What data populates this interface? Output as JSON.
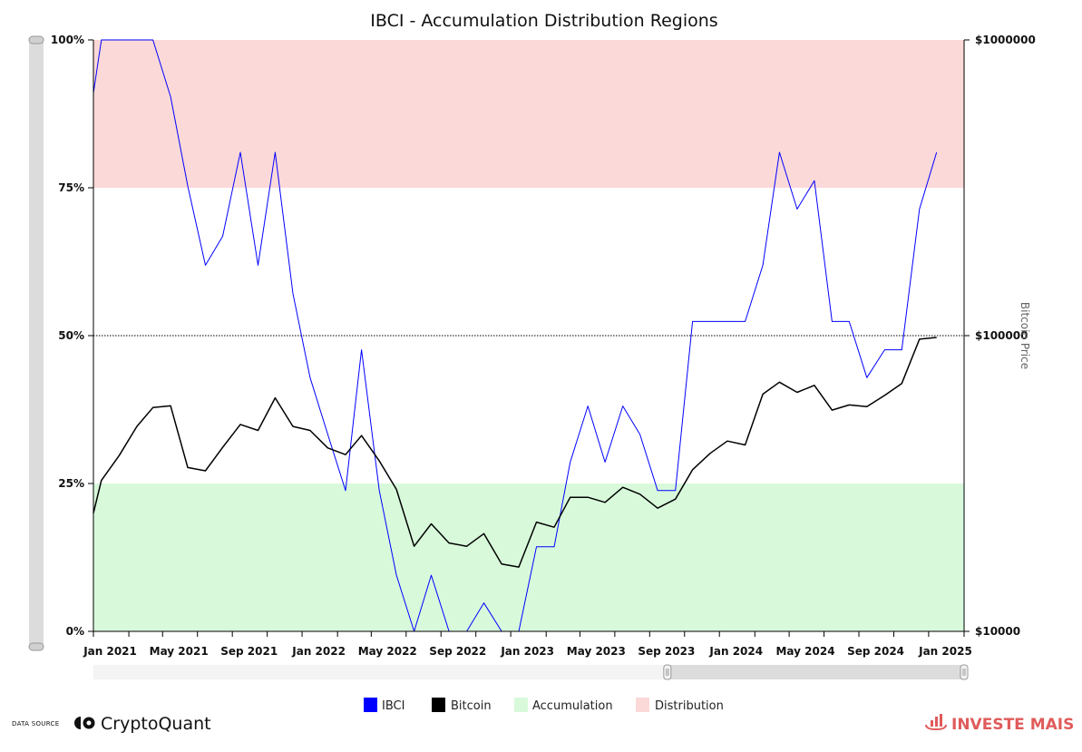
{
  "chart_data": {
    "type": "line",
    "title": "IBCI - Accumulation Distribution Regions",
    "y_left": {
      "ticks": [
        0,
        25,
        50,
        75,
        100
      ],
      "tick_labels": [
        "0%",
        "25%",
        "50%",
        "75%",
        "100%"
      ],
      "ylim": [
        0,
        100
      ]
    },
    "y_right": {
      "label": "Bitcoin Price",
      "scale": "log",
      "ylim": [
        10000,
        1000000
      ],
      "ticks": [
        10000,
        100000,
        1000000
      ],
      "tick_labels": [
        "$10000",
        "$100000",
        "$1000000"
      ]
    },
    "x_axis": {
      "range": [
        "2020-12-01",
        "2025-02-01"
      ],
      "tick_labels": [
        {
          "date": "2021-01-01",
          "label": "Jan 2021"
        },
        {
          "date": "2021-05-01",
          "label": "May 2021"
        },
        {
          "date": "2021-09-01",
          "label": "Sep 2021"
        },
        {
          "date": "2022-01-01",
          "label": "Jan 2022"
        },
        {
          "date": "2022-05-01",
          "label": "May 2022"
        },
        {
          "date": "2022-09-01",
          "label": "Sep 2022"
        },
        {
          "date": "2023-01-01",
          "label": "Jan 2023"
        },
        {
          "date": "2023-05-01",
          "label": "May 2023"
        },
        {
          "date": "2023-09-01",
          "label": "Sep 2023"
        },
        {
          "date": "2024-01-01",
          "label": "Jan 2024"
        },
        {
          "date": "2024-05-01",
          "label": "May 2024"
        },
        {
          "date": "2024-09-01",
          "label": "Sep 2024"
        },
        {
          "date": "2025-01-01",
          "label": "Jan 2025"
        }
      ]
    },
    "x": [
      "2020-12-01",
      "2020-12-15",
      "2021-01-15",
      "2021-02-15",
      "2021-03-15",
      "2021-04-15",
      "2021-05-15",
      "2021-06-15",
      "2021-07-15",
      "2021-08-15",
      "2021-09-15",
      "2021-10-15",
      "2021-11-15",
      "2021-12-15",
      "2022-01-15",
      "2022-02-15",
      "2022-03-15",
      "2022-04-15",
      "2022-05-15",
      "2022-06-15",
      "2022-07-15",
      "2022-08-15",
      "2022-09-15",
      "2022-10-15",
      "2022-11-15",
      "2022-12-15",
      "2023-01-15",
      "2023-02-15",
      "2023-03-15",
      "2023-04-15",
      "2023-05-15",
      "2023-06-15",
      "2023-07-15",
      "2023-08-15",
      "2023-09-15",
      "2023-10-15",
      "2023-11-15",
      "2023-12-15",
      "2024-01-15",
      "2024-02-15",
      "2024-03-15",
      "2024-04-15",
      "2024-05-15",
      "2024-06-15",
      "2024-07-15",
      "2024-08-15",
      "2024-09-15",
      "2024-10-15",
      "2024-11-15",
      "2024-12-15"
    ],
    "series": [
      {
        "name": "IBCI",
        "axis": "left",
        "color": "#0000ff",
        "values": [
          91.0,
          100,
          100,
          100,
          100,
          90.4,
          75.3,
          61.9,
          66.8,
          81.0,
          61.9,
          81.0,
          57.1,
          42.9,
          33.3,
          23.8,
          47.6,
          23.8,
          9.5,
          0,
          9.5,
          0,
          0,
          4.8,
          0,
          0,
          14.3,
          14.3,
          28.6,
          38.1,
          28.6,
          38.1,
          33.3,
          23.8,
          23.8,
          52.4,
          52.4,
          52.4,
          52.4,
          61.9,
          81.0,
          71.4,
          76.2,
          52.4,
          52.4,
          42.9,
          47.6,
          47.6,
          71.4,
          81.0
        ]
      },
      {
        "name": "Bitcoin",
        "axis": "right",
        "color": "#000000",
        "values": [
          25100,
          32400,
          39300,
          49300,
          57100,
          57900,
          35800,
          34900,
          41900,
          50100,
          47800,
          61600,
          49300,
          47800,
          41700,
          39600,
          45900,
          37700,
          30200,
          19400,
          23100,
          19900,
          19400,
          21400,
          16900,
          16500,
          23400,
          22500,
          28400,
          28400,
          27300,
          30700,
          29100,
          26100,
          28000,
          35200,
          40000,
          44000,
          42700,
          63400,
          69600,
          64300,
          67900,
          56000,
          58300,
          57500,
          62800,
          68900,
          97300,
          98600
        ]
      }
    ],
    "regions": [
      {
        "name": "Accumulation",
        "from": 0,
        "to": 25,
        "color": "#d8fadb"
      },
      {
        "name": "Distribution",
        "from": 75,
        "to": 100,
        "color": "#fbd9d8"
      }
    ],
    "reference_line": {
      "value": 50,
      "style": "dotted"
    },
    "legend": {
      "placement": "bottom",
      "items": [
        {
          "label": "IBCI",
          "color": "#0000ff"
        },
        {
          "label": "Bitcoin",
          "color": "#000000"
        },
        {
          "label": "Accumulation",
          "color": "#d8fadb"
        },
        {
          "label": "Distribution",
          "color": "#fbd9d8"
        }
      ]
    },
    "grid": false
  },
  "navigator": {
    "selected_range": [
      "2023-09-01",
      "2025-02-01"
    ]
  },
  "footer": {
    "data_source_label": "DATA SOURCE",
    "data_source_brand": "CryptoQuant",
    "publisher": "INVESTE MAIS"
  }
}
